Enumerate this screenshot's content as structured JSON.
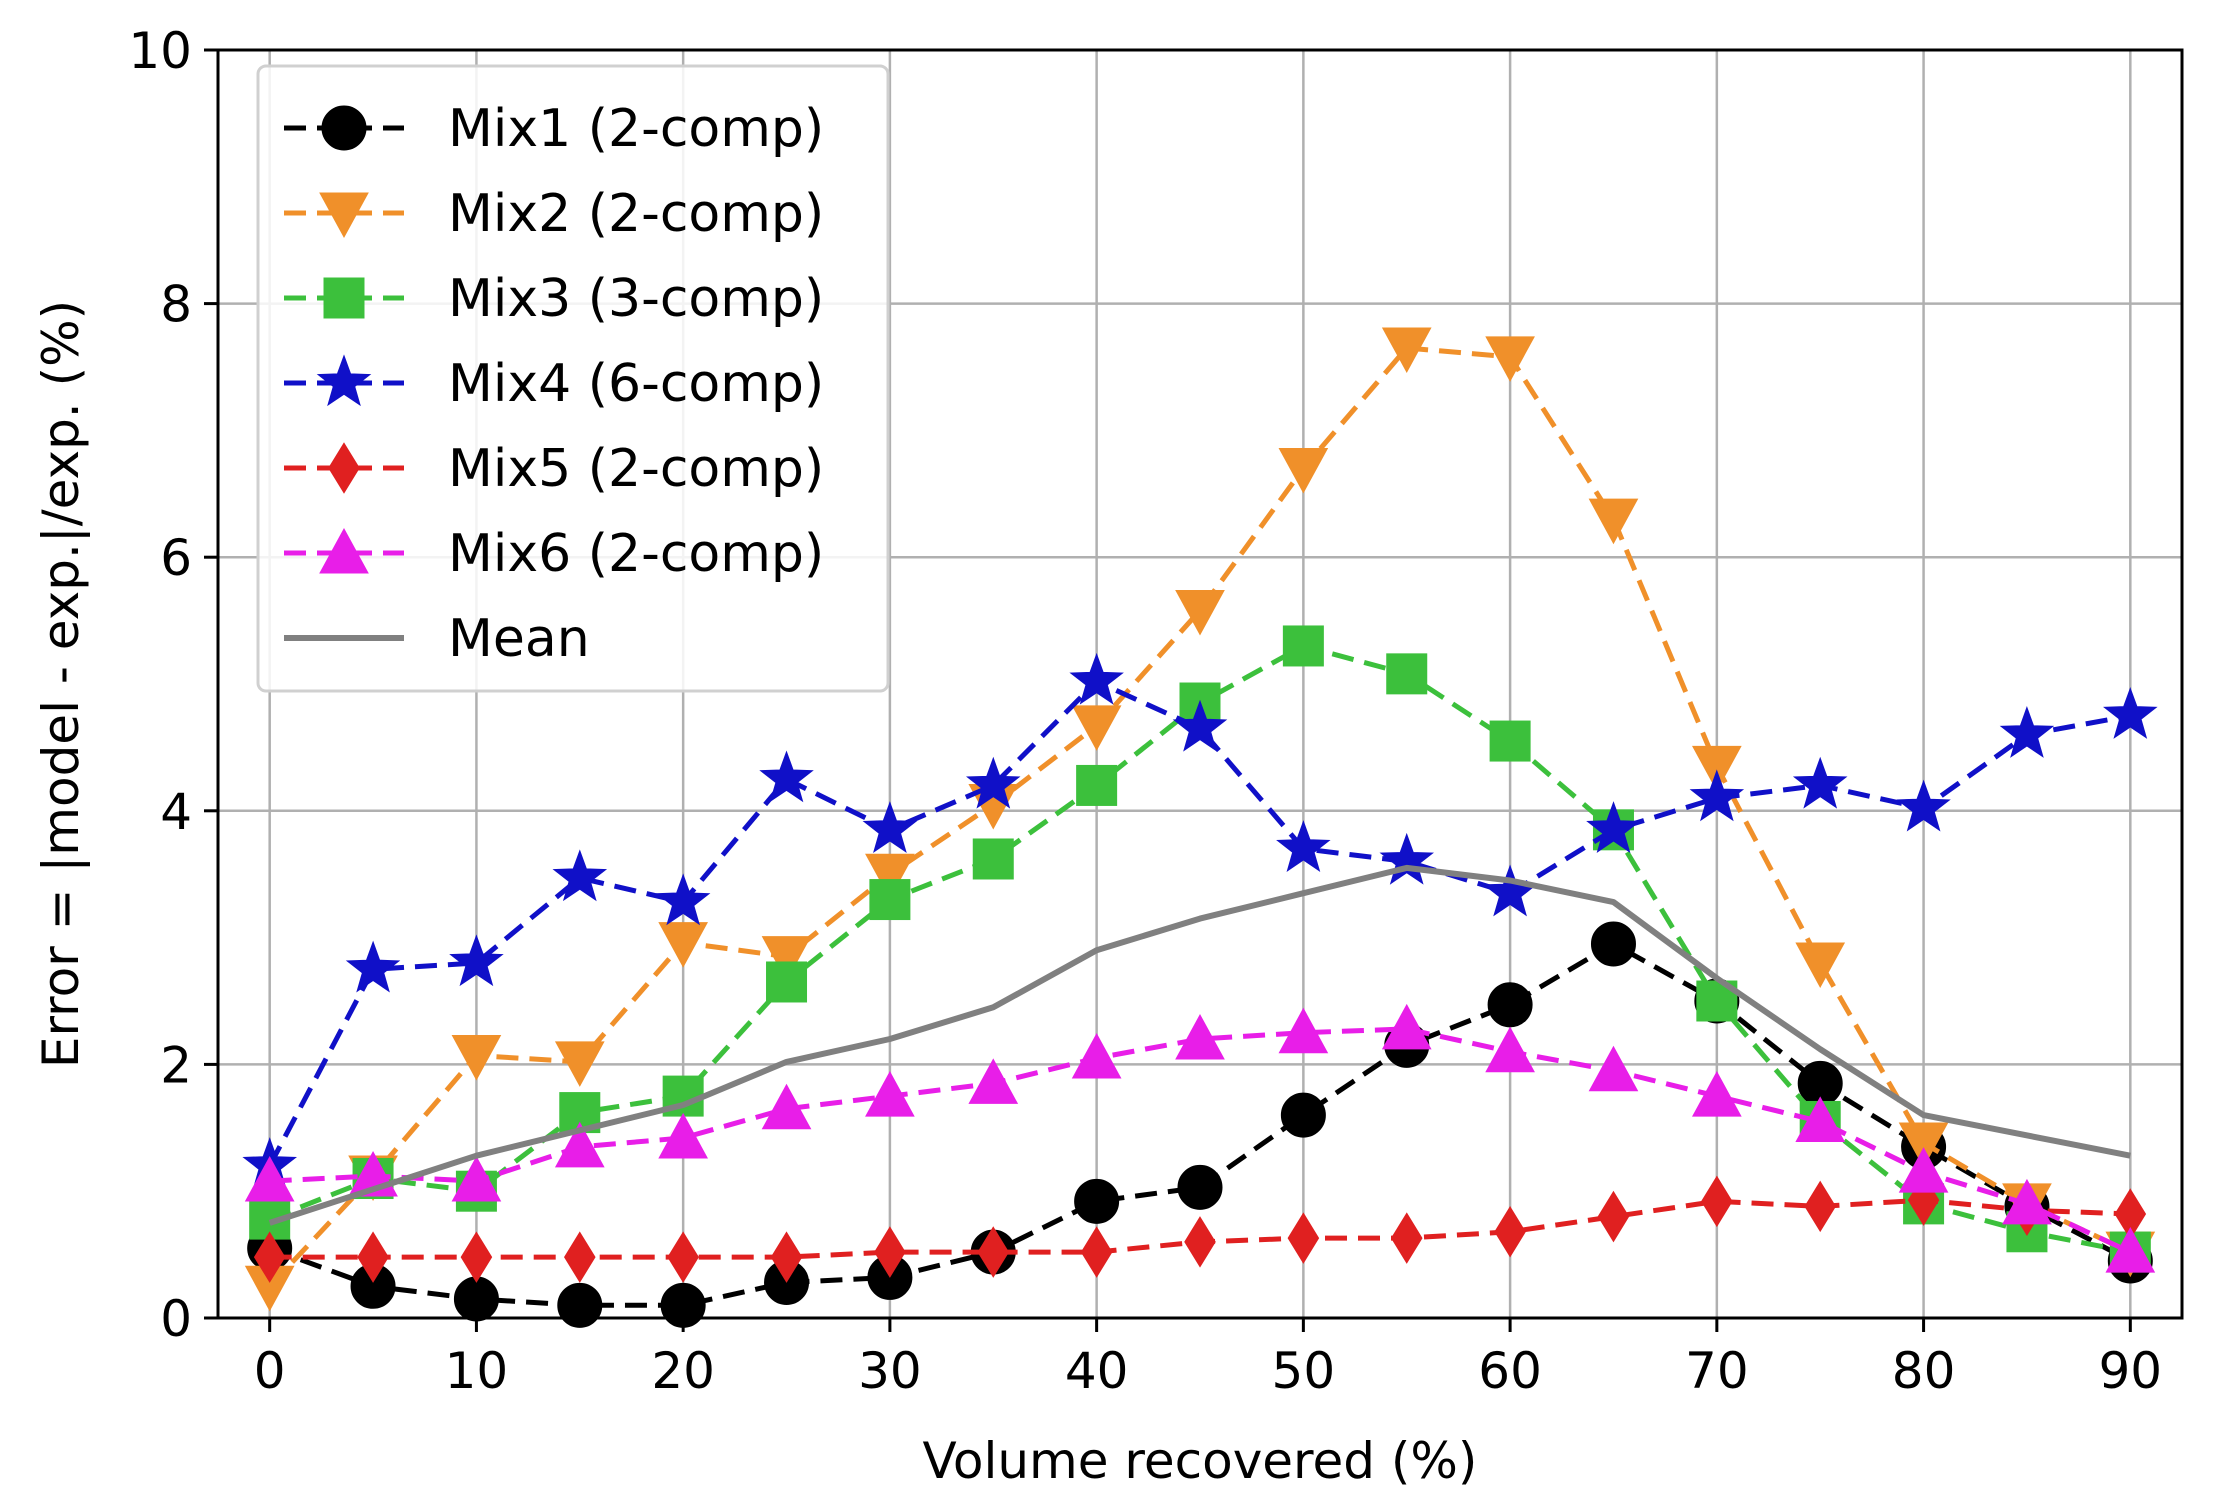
{
  "chart_data": {
    "type": "line",
    "title": "",
    "xlabel": "Volume recovered (%)",
    "ylabel": "Error = |model - exp.|/exp. (%)",
    "xlim": [
      -2.5,
      92.5
    ],
    "ylim": [
      0,
      10
    ],
    "xticks": [
      0,
      10,
      20,
      30,
      40,
      50,
      60,
      70,
      80,
      90
    ],
    "yticks": [
      0,
      2,
      4,
      6,
      8,
      10
    ],
    "grid": true,
    "legend_position": "top-left",
    "x": [
      0,
      5,
      10,
      15,
      20,
      25,
      30,
      35,
      40,
      45,
      50,
      55,
      60,
      65,
      70,
      75,
      80,
      85,
      90
    ],
    "series": [
      {
        "name": "Mix1 (2-comp)",
        "color": "#000000",
        "marker": "circle",
        "style": "dashed",
        "x": [
          0,
          5,
          10,
          15,
          20,
          25,
          30,
          35,
          40,
          45,
          50,
          55,
          60,
          65,
          70,
          75,
          80,
          85,
          90
        ],
        "values": [
          0.55,
          0.25,
          0.15,
          0.1,
          0.1,
          0.28,
          0.32,
          0.52,
          0.92,
          1.03,
          1.6,
          2.15,
          2.47,
          2.95,
          2.5,
          1.85,
          1.35,
          0.88,
          0.45
        ]
      },
      {
        "name": "Mix2 (2-comp)",
        "color": "#f0902a",
        "marker": "triangle-down",
        "style": "dashed",
        "x": [
          0,
          5,
          10,
          15,
          20,
          25,
          30,
          35,
          40,
          45,
          50,
          55,
          60,
          65,
          70,
          75,
          80,
          85,
          90
        ],
        "values": [
          0.25,
          1.12,
          2.07,
          2.02,
          2.96,
          2.85,
          3.5,
          4.05,
          4.67,
          5.58,
          6.7,
          7.65,
          7.58,
          6.3,
          4.35,
          2.8,
          1.38,
          0.9,
          0.52
        ]
      },
      {
        "name": "Mix3 (3-comp)",
        "color": "#3cc03c",
        "marker": "square",
        "style": "dashed",
        "x": [
          0,
          5,
          10,
          15,
          20,
          25,
          30,
          35,
          40,
          45,
          50,
          55,
          60,
          65,
          70,
          75,
          80,
          85,
          90
        ],
        "values": [
          0.78,
          1.1,
          1.0,
          1.62,
          1.75,
          2.65,
          3.3,
          3.62,
          4.2,
          4.85,
          5.3,
          5.08,
          4.55,
          3.85,
          2.5,
          1.55,
          0.9,
          0.68,
          0.52
        ]
      },
      {
        "name": "Mix4 (6-comp)",
        "color": "#1010c8",
        "marker": "star",
        "style": "dashed",
        "x": [
          0,
          5,
          10,
          15,
          20,
          25,
          30,
          35,
          40,
          45,
          50,
          55,
          60,
          65,
          70,
          75,
          80,
          85,
          90
        ],
        "values": [
          1.2,
          2.75,
          2.8,
          3.47,
          3.28,
          4.25,
          3.85,
          4.2,
          5.02,
          4.65,
          3.7,
          3.6,
          3.35,
          3.85,
          4.1,
          4.2,
          4.02,
          4.6,
          4.75
        ]
      },
      {
        "name": "Mix5 (2-comp)",
        "color": "#e02020",
        "marker": "diamond",
        "style": "dashed",
        "x": [
          0,
          5,
          10,
          15,
          20,
          25,
          30,
          35,
          40,
          45,
          50,
          55,
          60,
          65,
          70,
          75,
          80,
          85,
          90
        ],
        "values": [
          0.48,
          0.48,
          0.48,
          0.48,
          0.48,
          0.48,
          0.52,
          0.52,
          0.52,
          0.6,
          0.63,
          0.63,
          0.68,
          0.8,
          0.92,
          0.88,
          0.93,
          0.85,
          0.82
        ]
      },
      {
        "name": "Mix6 (2-comp)",
        "color": "#e81ee8",
        "marker": "triangle-up",
        "style": "dashed",
        "x": [
          0,
          5,
          10,
          15,
          20,
          25,
          30,
          35,
          40,
          45,
          50,
          55,
          60,
          65,
          70,
          75,
          80,
          85,
          90
        ],
        "values": [
          1.08,
          1.12,
          1.08,
          1.35,
          1.42,
          1.65,
          1.75,
          1.85,
          2.05,
          2.2,
          2.25,
          2.28,
          2.1,
          1.95,
          1.75,
          1.55,
          1.15,
          0.9,
          0.52
        ]
      },
      {
        "name": "Mean",
        "color": "#808080",
        "marker": "none",
        "style": "solid",
        "x": [
          0,
          10,
          20,
          25,
          30,
          35,
          40,
          45,
          50,
          55,
          60,
          65,
          70,
          75,
          80,
          90
        ],
        "values": [
          0.75,
          1.28,
          1.68,
          2.02,
          2.2,
          2.45,
          2.9,
          3.15,
          3.35,
          3.55,
          3.45,
          3.28,
          2.68,
          2.12,
          1.6,
          1.28
        ]
      }
    ]
  }
}
